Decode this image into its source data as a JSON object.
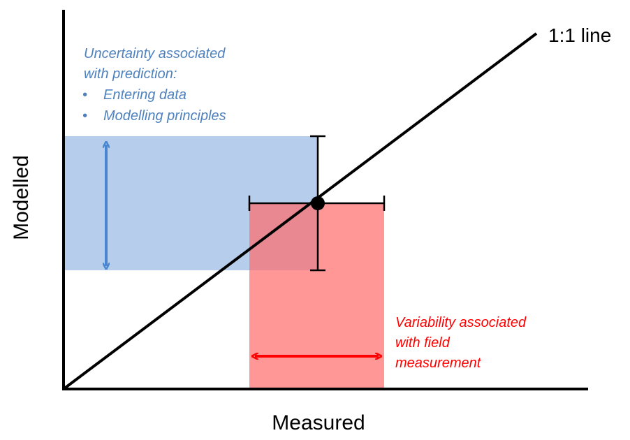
{
  "axes": {
    "x_label": "Measured",
    "y_label": "Modelled"
  },
  "reference_line": {
    "label": "1:1 line"
  },
  "prediction_uncertainty": {
    "heading_line1": "Uncertainty associated",
    "heading_line2": "with prediction:",
    "bullets": [
      "Entering data",
      "Modelling principles"
    ],
    "bullet_symbol": "•"
  },
  "field_variability": {
    "line1": "Variability associated",
    "line2": "with field",
    "line3": "measurement"
  },
  "colors": {
    "axis": "#000000",
    "blue_band": "#A9C4E8",
    "blue_arrow": "#4A86D0",
    "blue_text": "#4F81BD",
    "red_band": "#FF7373",
    "red_arrow": "#FF0000",
    "red_text": "#FF0000"
  }
}
